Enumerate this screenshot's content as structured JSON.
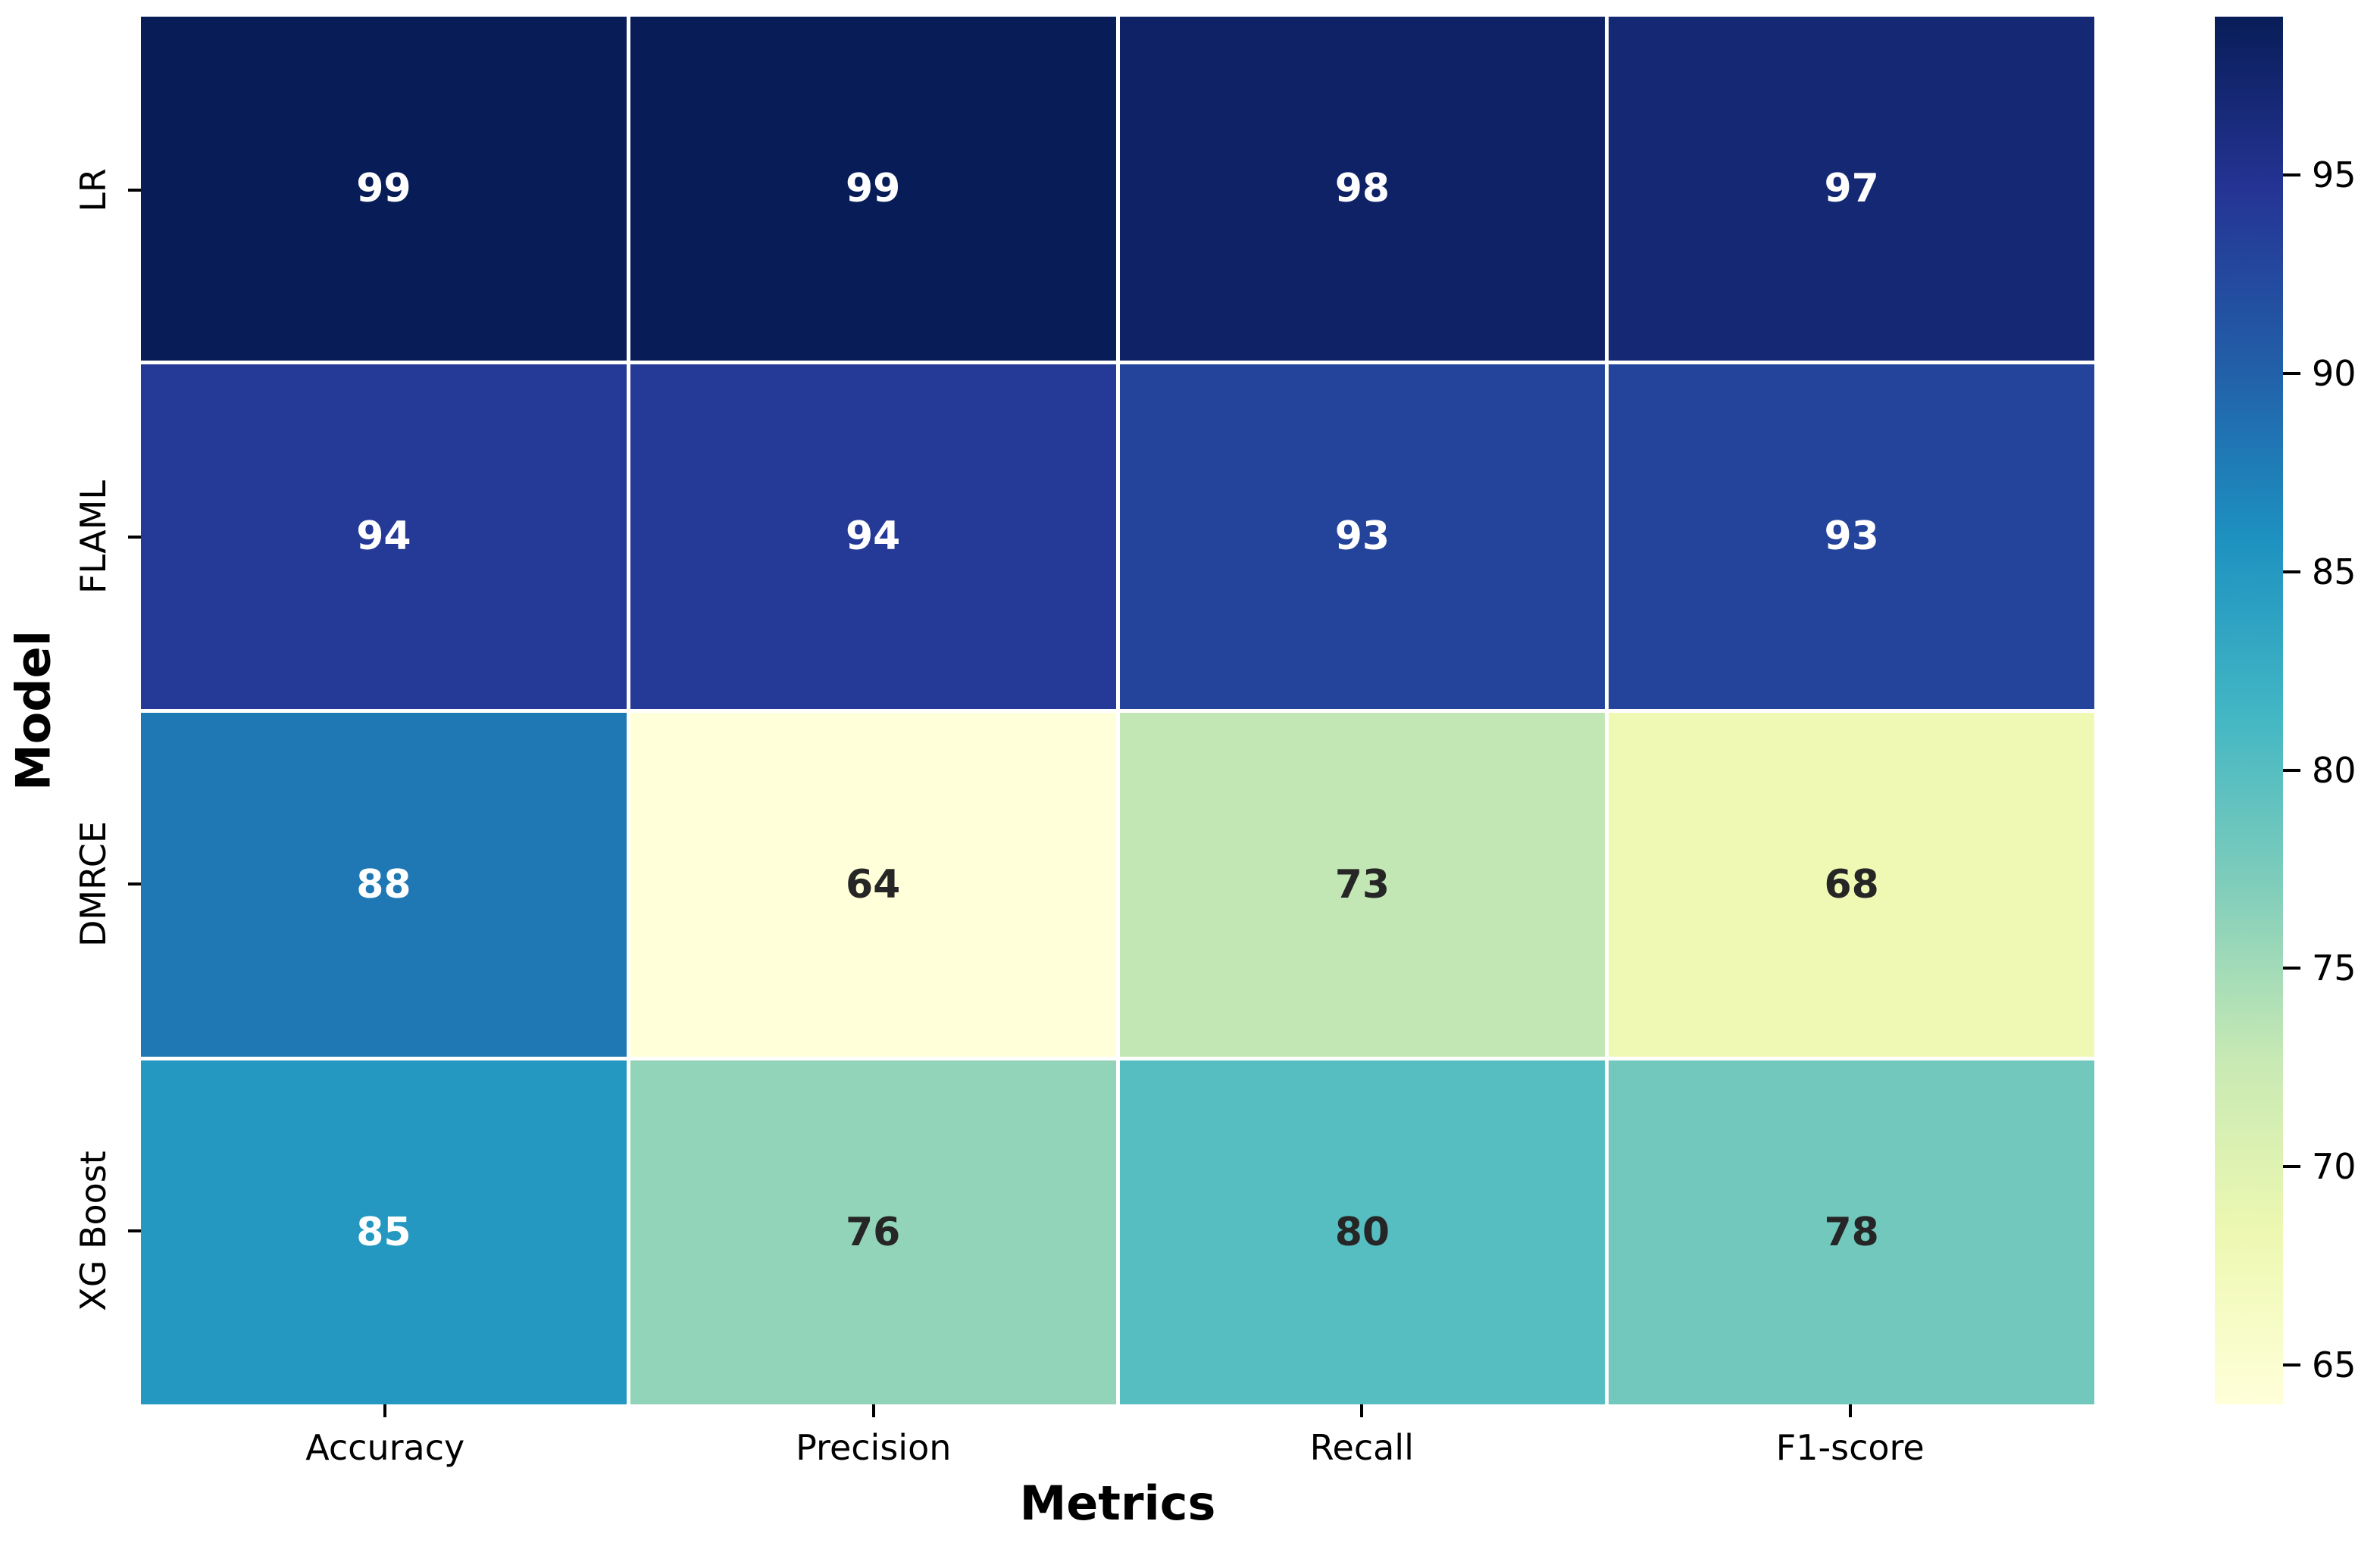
{
  "figure": {
    "background": "#ffffff"
  },
  "chart_data": {
    "type": "heatmap",
    "title": "",
    "xlabel": "Metrics",
    "ylabel": "Model",
    "x_categories": [
      "Accuracy",
      "Precision",
      "Recall",
      "F1-score"
    ],
    "y_categories": [
      "LR",
      "FLAML",
      "DMRCE",
      "XG Boost"
    ],
    "values": [
      [
        99,
        99,
        98,
        97
      ],
      [
        94,
        94,
        93,
        93
      ],
      [
        88,
        64,
        73,
        68
      ],
      [
        85,
        76,
        80,
        78
      ]
    ],
    "vmin": 64,
    "vmax": 99,
    "colormap": "YlGnBu",
    "colormap_stops": [
      {
        "t": 0.0,
        "color": "#ffffd9"
      },
      {
        "t": 0.125,
        "color": "#edf8b1"
      },
      {
        "t": 0.25,
        "color": "#c7e9b4"
      },
      {
        "t": 0.375,
        "color": "#7fcdbb"
      },
      {
        "t": 0.5,
        "color": "#41b6c4"
      },
      {
        "t": 0.625,
        "color": "#1d91c0"
      },
      {
        "t": 0.75,
        "color": "#225ea8"
      },
      {
        "t": 0.875,
        "color": "#253494"
      },
      {
        "t": 1.0,
        "color": "#081d58"
      }
    ],
    "colorbar_ticks": [
      95,
      90,
      85,
      80,
      75,
      70,
      65
    ],
    "colorbar_position": "right",
    "grid_line_color": "#ffffff",
    "tick_color": "#000000",
    "annotation_colors": {
      "on_dark": "#ffffff",
      "on_light": "#262626"
    },
    "annotations_shown": true
  }
}
